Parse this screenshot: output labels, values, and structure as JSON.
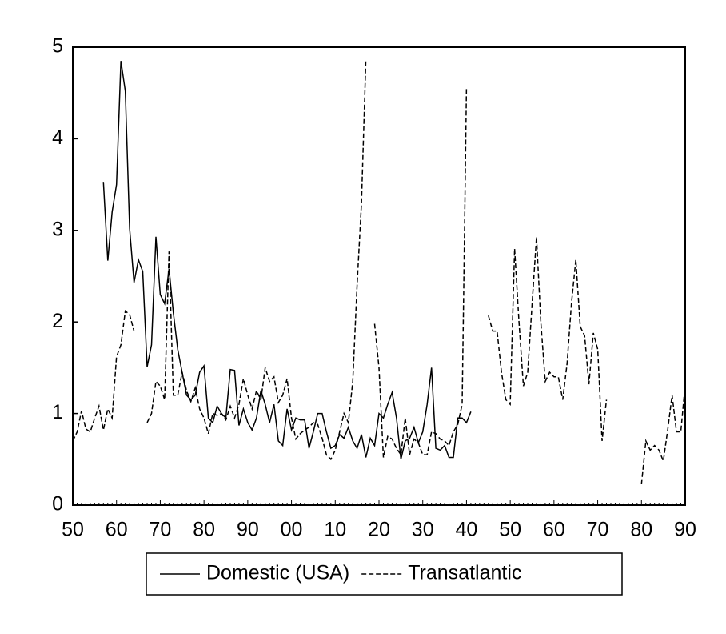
{
  "chart_data": {
    "type": "line",
    "categories": [
      "50",
      null,
      null,
      null,
      null,
      null,
      null,
      null,
      null,
      null,
      "60",
      null,
      null,
      null,
      null,
      null,
      null,
      null,
      null,
      null,
      "70",
      null,
      null,
      null,
      null,
      null,
      null,
      null,
      null,
      null,
      "80",
      null,
      null,
      null,
      null,
      null,
      null,
      null,
      null,
      null,
      "90",
      null,
      null,
      null,
      null,
      null,
      null,
      null,
      null,
      null,
      "00",
      null,
      null,
      null,
      null,
      null,
      null,
      null,
      null,
      null,
      "10",
      null,
      null,
      null,
      null,
      null,
      null,
      null,
      null,
      null,
      "20",
      null,
      null,
      null,
      null,
      null,
      null,
      null,
      null,
      null,
      "30",
      null,
      null,
      null,
      null,
      null,
      null,
      null,
      null,
      null,
      "40",
      null,
      null,
      null,
      null,
      null,
      null,
      null,
      null,
      null,
      "50",
      null,
      null,
      null,
      null,
      null,
      null,
      null,
      null,
      null,
      "60",
      null,
      null,
      null,
      null,
      null,
      null,
      null,
      null,
      null,
      "70",
      null,
      null,
      null,
      null,
      null,
      null,
      null,
      null,
      null,
      "80",
      null,
      null,
      null,
      null,
      null,
      null,
      null,
      null,
      null,
      "90"
    ],
    "series": [
      {
        "name": "Domestic (USA)",
        "color": "#000000",
        "dash": false,
        "values": [
          null,
          null,
          null,
          null,
          null,
          null,
          null,
          3.53,
          2.67,
          3.2,
          3.5,
          4.85,
          4.52,
          3.02,
          2.43,
          2.68,
          2.55,
          1.51,
          1.75,
          2.93,
          2.3,
          2.2,
          2.58,
          2.1,
          1.7,
          1.45,
          1.2,
          1.15,
          1.2,
          1.45,
          1.52,
          0.95,
          0.9,
          1.08,
          1.0,
          0.95,
          1.48,
          1.47,
          0.87,
          1.05,
          0.9,
          0.82,
          0.95,
          1.25,
          1.1,
          0.9,
          1.1,
          0.7,
          0.65,
          1.05,
          0.82,
          0.95,
          0.93,
          0.93,
          0.62,
          0.8,
          1.0,
          1.0,
          0.8,
          0.62,
          0.65,
          0.77,
          0.73,
          0.85,
          0.7,
          0.62,
          0.77,
          0.52,
          0.73,
          0.65,
          1.0,
          0.95,
          1.1,
          1.23,
          0.95,
          0.5,
          0.7,
          0.73,
          0.85,
          0.68,
          0.8,
          1.1,
          1.5,
          0.62,
          0.6,
          0.65,
          0.52,
          0.52,
          0.95,
          0.95,
          0.9,
          1.02,
          null,
          null,
          null,
          null,
          null,
          null,
          null,
          null,
          null,
          null,
          null,
          null,
          null,
          null,
          null,
          null,
          null,
          null,
          null,
          null,
          null,
          null,
          null,
          null,
          null,
          null,
          null,
          null,
          null,
          null,
          null,
          null,
          null,
          null,
          null,
          null,
          null,
          null,
          null,
          null,
          null,
          null,
          null,
          null,
          null,
          null,
          null,
          null,
          null
        ]
      },
      {
        "name": "Transatlantic",
        "color": "#000000",
        "dash": true,
        "values": [
          0.7,
          0.8,
          1.03,
          0.83,
          0.8,
          0.95,
          1.08,
          0.82,
          1.05,
          0.95,
          1.62,
          1.75,
          2.12,
          2.08,
          1.9,
          null,
          null,
          0.9,
          1.0,
          1.35,
          1.3,
          1.15,
          2.77,
          1.2,
          1.2,
          1.45,
          1.25,
          1.13,
          1.28,
          1.05,
          0.95,
          0.78,
          1.0,
          0.98,
          1.0,
          0.93,
          1.08,
          0.95,
          1.1,
          1.38,
          1.2,
          1.05,
          1.25,
          1.15,
          1.5,
          1.35,
          1.4,
          1.12,
          1.2,
          1.38,
          0.95,
          0.72,
          0.78,
          0.82,
          0.85,
          0.9,
          0.88,
          0.73,
          0.55,
          0.5,
          0.6,
          0.8,
          1.0,
          0.9,
          1.35,
          2.4,
          3.3,
          4.87,
          null,
          1.98,
          1.5,
          0.52,
          0.75,
          0.72,
          0.62,
          0.55,
          0.95,
          0.55,
          0.72,
          0.68,
          0.55,
          0.55,
          0.8,
          0.78,
          0.72,
          0.7,
          0.65,
          0.8,
          0.88,
          1.1,
          4.55,
          null,
          null,
          null,
          null,
          2.07,
          1.9,
          1.9,
          1.45,
          1.15,
          1.1,
          2.8,
          2.0,
          1.3,
          1.45,
          2.2,
          2.93,
          2.0,
          1.35,
          1.45,
          1.4,
          1.4,
          1.15,
          1.55,
          2.2,
          2.68,
          1.95,
          1.85,
          1.32,
          1.88,
          1.7,
          0.7,
          1.15,
          null,
          null,
          null,
          null,
          null,
          null,
          null,
          0.23,
          0.7,
          0.6,
          0.65,
          0.6,
          0.48,
          0.82,
          1.2,
          0.8,
          0.8,
          1.32
        ]
      }
    ],
    "ylim": [
      0,
      5
    ],
    "yticks": [
      0,
      1,
      2,
      3,
      4,
      5
    ]
  }
}
